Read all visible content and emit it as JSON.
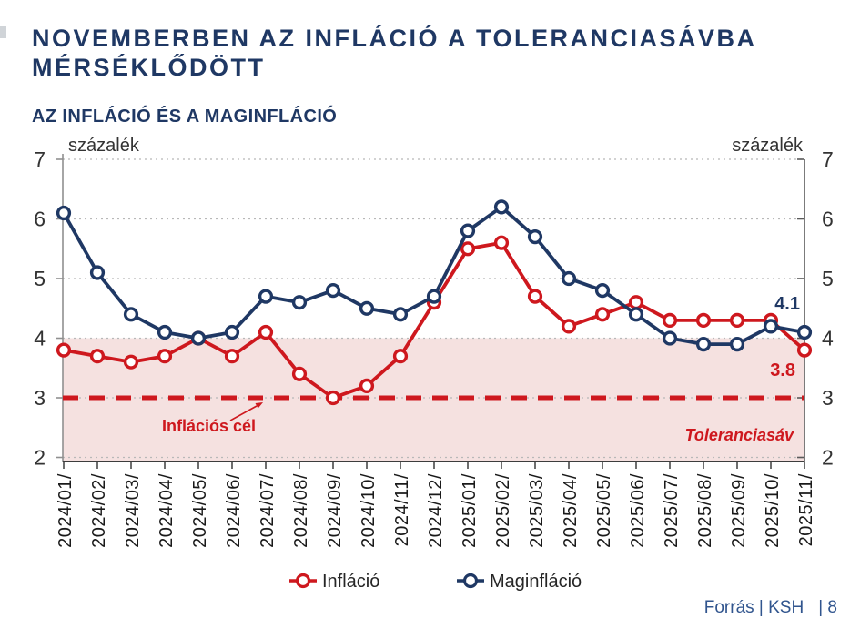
{
  "slide": {
    "title_line1": "NOVEMBERBEN AZ INFLÁCIÓ A TOLERANCIASÁVBA",
    "title_line2": "MÉRSÉKLŐDÖTT",
    "footer_source": "Forrás | KSH",
    "footer_page": "| 8"
  },
  "colors": {
    "brand_navy": "#1f3864",
    "accent_red": "#ce181e",
    "tolerance_band_pink": "#f5e1e0"
  },
  "chart_data": {
    "type": "line",
    "title": "AZ INFLÁCIÓ ÉS A MAGINFLÁCIÓ",
    "unit_label": "százalék",
    "ylim": [
      2,
      7
    ],
    "yticks": [
      7,
      6,
      5,
      4,
      3,
      2
    ],
    "grid": "horizontal-dotted",
    "legend_position": "bottom",
    "categories": [
      "2024/01/",
      "2024/02/",
      "2024/03/",
      "2024/04/",
      "2024/05/",
      "2024/06/",
      "2024/07/",
      "2024/08/",
      "2024/09/",
      "2024/10/",
      "2024/11/",
      "2024/12/",
      "2025/01/",
      "2025/02/",
      "2025/03/",
      "2025/04/",
      "2025/05/",
      "2025/06/",
      "2025/07/",
      "2025/08/",
      "2025/09/",
      "2025/10/",
      "2025/11/"
    ],
    "series": [
      {
        "name": "Infláció",
        "color": "#ce181e",
        "marker": "open-circle",
        "values": [
          3.8,
          3.7,
          3.6,
          3.7,
          4.0,
          3.7,
          4.1,
          3.4,
          3.0,
          3.2,
          3.7,
          4.6,
          5.5,
          5.6,
          4.7,
          4.2,
          4.4,
          4.6,
          4.3,
          4.3,
          4.3,
          4.3,
          3.8
        ]
      },
      {
        "name": "Maginfláció",
        "color": "#1f3864",
        "marker": "open-circle",
        "values": [
          6.1,
          5.1,
          4.4,
          4.1,
          4.0,
          4.1,
          4.7,
          4.6,
          4.8,
          4.5,
          4.4,
          4.7,
          5.8,
          6.2,
          5.7,
          5.0,
          4.8,
          4.4,
          4.0,
          3.9,
          3.9,
          4.2,
          4.1
        ]
      }
    ],
    "target_line": {
      "value": 3,
      "label": "Inflációs cél",
      "style": "dashed",
      "color": "#ce181e"
    },
    "tolerance_band": {
      "from": 2,
      "to": 4,
      "label": "Toleranciasáv",
      "fill": "#f5e1e0"
    },
    "end_value_labels": [
      {
        "series": "Maginfláció",
        "text": "4.1",
        "color": "#1f3864"
      },
      {
        "series": "Infláció",
        "text": "3.8",
        "color": "#ce181e"
      }
    ]
  }
}
